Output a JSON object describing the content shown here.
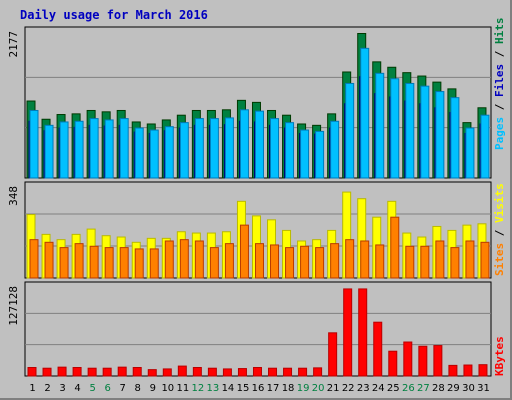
{
  "title": "Daily usage for March 2016",
  "colors": {
    "hits": "#008040",
    "files": "#0000c0",
    "pages": "#00c0ff",
    "visits": "#ffff00",
    "sites": "#ff8000",
    "kbytes": "#ff0000",
    "weekend_label": "#008040",
    "weekday_label": "#000000",
    "panel_bg": "#c0c0c0"
  },
  "chart_data": {
    "type": "bar",
    "categories": [
      "1",
      "2",
      "3",
      "4",
      "5",
      "6",
      "7",
      "8",
      "9",
      "10",
      "11",
      "12",
      "13",
      "14",
      "15",
      "16",
      "17",
      "18",
      "19",
      "20",
      "21",
      "22",
      "23",
      "24",
      "25",
      "26",
      "27",
      "28",
      "29",
      "30",
      "31"
    ],
    "weekend_days": [
      "5",
      "6",
      "12",
      "13",
      "19",
      "20",
      "26",
      "27"
    ],
    "panels": [
      {
        "key": "hits_files_pages",
        "max_label": "2177",
        "ymax": 2177,
        "legend": [
          "Pages",
          "Files",
          "Hits"
        ],
        "series": [
          {
            "name": "Hits",
            "color": "#008040",
            "values": [
              1140,
              870,
              940,
              950,
              1000,
              980,
              1000,
              830,
              800,
              860,
              930,
              1000,
              1000,
              1010,
              1150,
              1120,
              1000,
              930,
              800,
              780,
              950,
              1570,
              2140,
              1720,
              1640,
              1560,
              1510,
              1420,
              1320,
              820,
              1040
            ]
          },
          {
            "name": "Files",
            "color": "#0000c0",
            "values": [
              840,
              700,
              740,
              750,
              780,
              770,
              780,
              680,
              660,
              700,
              740,
              780,
              780,
              790,
              840,
              830,
              780,
              740,
              660,
              650,
              740,
              1100,
              1500,
              1250,
              1200,
              1140,
              1100,
              1040,
              970,
              660,
              800
            ]
          },
          {
            "name": "Pages",
            "color": "#00c0ff",
            "values": [
              1000,
              780,
              830,
              840,
              880,
              860,
              880,
              740,
              710,
              760,
              820,
              880,
              880,
              890,
              1010,
              990,
              880,
              820,
              710,
              690,
              840,
              1400,
              1920,
              1550,
              1470,
              1400,
              1360,
              1280,
              1190,
              740,
              930
            ]
          }
        ]
      },
      {
        "key": "visits_sites",
        "max_label": "348",
        "ymax": 348,
        "legend": [
          "Sites",
          "Visits"
        ],
        "series": [
          {
            "name": "Visits",
            "color": "#ffff00",
            "values": [
              240,
              165,
              145,
              165,
              185,
              160,
              155,
              135,
              150,
              150,
              175,
              170,
              170,
              175,
              290,
              235,
              220,
              180,
              140,
              145,
              180,
              325,
              300,
              230,
              290,
              170,
              155,
              195,
              180,
              200,
              205
            ]
          },
          {
            "name": "Sites",
            "color": "#ff8000",
            "values": [
              145,
              135,
              115,
              130,
              120,
              115,
              115,
              110,
              110,
              140,
              145,
              140,
              115,
              130,
              200,
              130,
              125,
              115,
              120,
              115,
              130,
              145,
              140,
              125,
              230,
              120,
              120,
              140,
              115,
              140,
              135
            ]
          }
        ]
      },
      {
        "key": "kbytes",
        "max_label": "127128",
        "ymax": 127128,
        "legend": [
          "KBytes"
        ],
        "series": [
          {
            "name": "KBytes",
            "color": "#ff0000",
            "values": [
              12000,
              11000,
              12500,
              12000,
              11000,
              11000,
              12500,
              12000,
              9000,
              10000,
              14000,
              12000,
              11000,
              10000,
              10500,
              12000,
              11000,
              11000,
              11000,
              11500,
              61000,
              123000,
              123000,
              76000,
              35000,
              48000,
              42000,
              43000,
              15000,
              15500,
              16000
            ]
          }
        ]
      }
    ]
  }
}
